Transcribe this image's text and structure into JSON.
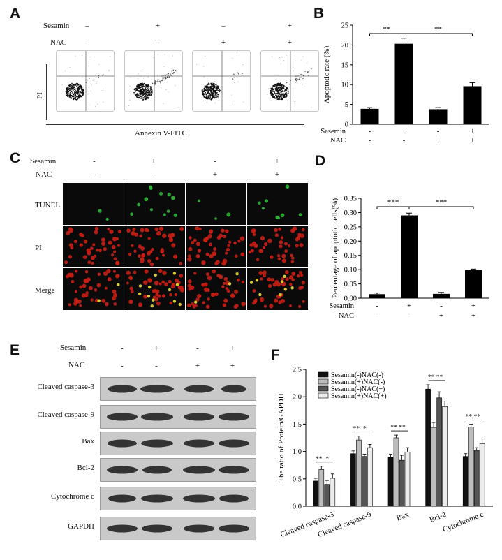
{
  "panels": {
    "A": "A",
    "B": "B",
    "C": "C",
    "D": "D",
    "E": "E",
    "F": "F"
  },
  "groups": {
    "sesamin_label": "Sesamin",
    "sasemin_label": "Sasemin",
    "nac_label": "NAC",
    "sesamin_signs": [
      "–",
      "+",
      "–",
      "+"
    ],
    "nac_signs": [
      "–",
      "–",
      "+",
      "+"
    ],
    "sesamin_signs_b": [
      "-",
      "+",
      "-",
      "+"
    ],
    "nac_signs_b": [
      "-",
      "-",
      "+",
      "+"
    ]
  },
  "flow": {
    "ylabel": "PI",
    "xlabel": "Annexin V-FITC"
  },
  "microscopy": {
    "rows": [
      "TUNEL",
      "PI",
      "Merge"
    ]
  },
  "blots": {
    "rows": [
      "Cleaved caspase-3",
      "Cleaved caspase-9",
      "Bax",
      "Bcl-2",
      "Cytochrome c",
      "GAPDH"
    ]
  },
  "colors": {
    "bar": "#000000",
    "tunel": "#2fbf3a",
    "pi_stain": "#c81e14",
    "merge": "#d8c832"
  },
  "chart_data": [
    {
      "type": "bar",
      "panel": "B",
      "ylabel": "Apoptotic rate (%)",
      "ylim": [
        0,
        25
      ],
      "yticks": [
        0,
        5,
        10,
        15,
        20,
        25
      ],
      "categories": [
        "Sesamin- NAC-",
        "Sesamin+ NAC-",
        "Sesamin- NAC+",
        "Sesamin+ NAC+"
      ],
      "values": [
        3.9,
        20.3,
        3.8,
        9.6
      ],
      "errors": [
        0.3,
        1.4,
        0.4,
        0.9
      ],
      "significance": [
        {
          "from": 0,
          "to": 1,
          "label": "**"
        },
        {
          "from": 1,
          "to": 3,
          "label": "**"
        }
      ]
    },
    {
      "type": "bar",
      "panel": "D",
      "ylabel": "Percentage of apoptotic cells(%)",
      "ylim": [
        0,
        0.35
      ],
      "yticks": [
        "0.00",
        "0.05",
        "0.10",
        "0.15",
        "0.20",
        "0.25",
        "0.30",
        "0.35"
      ],
      "categories": [
        "Sesamin- NAC-",
        "Sesamin+ NAC-",
        "Sesamin- NAC+",
        "Sesamin+ NAC+"
      ],
      "values": [
        0.014,
        0.29,
        0.015,
        0.098
      ],
      "errors": [
        0.004,
        0.008,
        0.005,
        0.004
      ],
      "significance": [
        {
          "from": 0,
          "to": 1,
          "label": "***"
        },
        {
          "from": 1,
          "to": 3,
          "label": "***"
        }
      ]
    },
    {
      "type": "bar",
      "panel": "F",
      "ylabel": "The ratio of Protein/GAPDH",
      "ylim": [
        0,
        2.5
      ],
      "yticks": [
        "0.0",
        "0.5",
        "1.0",
        "1.5",
        "2.0",
        "2.5"
      ],
      "categories": [
        "Cleaved caspase-3",
        "Cleaved caspase-9",
        "Bax",
        "Bcl-2",
        "Cytochrome c"
      ],
      "series": [
        {
          "name": "Sesamin(-)NAC(-)",
          "color": "#111111",
          "values": [
            0.46,
            0.96,
            0.89,
            2.14,
            0.91
          ],
          "errors": [
            0.05,
            0.05,
            0.06,
            0.08,
            0.05
          ]
        },
        {
          "name": "Sesamin(+)NAC(-)",
          "color": "#bcbcbc",
          "values": [
            0.67,
            1.21,
            1.25,
            1.44,
            1.45
          ],
          "errors": [
            0.06,
            0.07,
            0.05,
            0.09,
            0.05
          ]
        },
        {
          "name": "Sesamin(-)NAC(+)",
          "color": "#555555",
          "values": [
            0.4,
            0.91,
            0.84,
            1.98,
            1.02
          ],
          "errors": [
            0.07,
            0.04,
            0.09,
            0.11,
            0.05
          ]
        },
        {
          "name": "Sesamin(+)NAC(+)",
          "color": "#ececec",
          "values": [
            0.51,
            1.07,
            0.99,
            1.82,
            1.14
          ],
          "errors": [
            0.08,
            0.06,
            0.08,
            0.1,
            0.09
          ]
        }
      ],
      "significance": [
        [
          "**",
          "*"
        ],
        [
          "**",
          "*"
        ],
        [
          "**",
          "**"
        ],
        [
          "**",
          "**"
        ],
        [
          "**",
          "**"
        ]
      ]
    }
  ]
}
